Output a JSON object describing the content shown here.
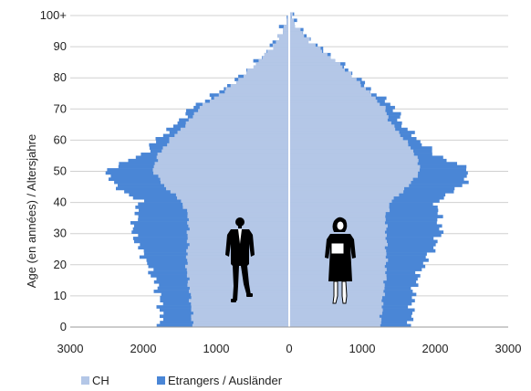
{
  "chart_data": {
    "type": "bar",
    "orientation": "horizontal-pyramid",
    "ylabel": "Age (en années) / Altersjahre",
    "xlim": [
      -3000,
      3000
    ],
    "ylim": [
      0,
      100
    ],
    "x_ticks": [
      -3000,
      -2000,
      -1000,
      0,
      1000,
      2000,
      3000
    ],
    "x_tick_labels": [
      "3000",
      "2000",
      "1000",
      "0",
      "1000",
      "2000",
      "3000"
    ],
    "y_ticks": [
      0,
      10,
      20,
      30,
      40,
      50,
      60,
      70,
      80,
      90,
      100
    ],
    "y_tick_labels": [
      "0",
      "10",
      "20",
      "30",
      "40",
      "50",
      "60",
      "70",
      "80",
      "90",
      "100+"
    ],
    "grid": "horizontal",
    "legend_position": "bottom-left",
    "colors": {
      "CH": "#b4c7e7",
      "Etrangers / Ausländer": "#4a86d6",
      "grid": "#d0d0d0",
      "center_line": "#ffffff"
    },
    "series": [
      {
        "name": "CH",
        "side_men": [
          [
            0,
            1320
          ],
          [
            5,
            1340
          ],
          [
            10,
            1360
          ],
          [
            15,
            1390
          ],
          [
            20,
            1410
          ],
          [
            25,
            1390
          ],
          [
            30,
            1390
          ],
          [
            35,
            1380
          ],
          [
            40,
            1480
          ],
          [
            45,
            1720
          ],
          [
            50,
            1870
          ],
          [
            55,
            1790
          ],
          [
            60,
            1620
          ],
          [
            65,
            1400
          ],
          [
            70,
            1230
          ],
          [
            75,
            900
          ],
          [
            80,
            640
          ],
          [
            85,
            420
          ],
          [
            90,
            220
          ],
          [
            95,
            90
          ],
          [
            100,
            20
          ]
        ],
        "side_women": [
          [
            0,
            1250
          ],
          [
            5,
            1270
          ],
          [
            10,
            1290
          ],
          [
            15,
            1320
          ],
          [
            20,
            1330
          ],
          [
            25,
            1330
          ],
          [
            30,
            1330
          ],
          [
            35,
            1320
          ],
          [
            40,
            1400
          ],
          [
            45,
            1640
          ],
          [
            50,
            1800
          ],
          [
            55,
            1730
          ],
          [
            60,
            1570
          ],
          [
            65,
            1390
          ],
          [
            70,
            1300
          ],
          [
            75,
            1090
          ],
          [
            80,
            880
          ],
          [
            85,
            640
          ],
          [
            90,
            360
          ],
          [
            95,
            140
          ],
          [
            100,
            30
          ]
        ]
      },
      {
        "name": "Etrangers / Ausländer",
        "side_men": [
          [
            0,
            1760
          ],
          [
            5,
            1760
          ],
          [
            10,
            1780
          ],
          [
            15,
            1850
          ],
          [
            20,
            1950
          ],
          [
            25,
            2050
          ],
          [
            30,
            2150
          ],
          [
            35,
            2100
          ],
          [
            40,
            2050
          ],
          [
            45,
            2400
          ],
          [
            50,
            2500
          ],
          [
            55,
            2000
          ],
          [
            60,
            1800
          ],
          [
            65,
            1530
          ],
          [
            70,
            1330
          ],
          [
            75,
            960
          ],
          [
            80,
            660
          ],
          [
            85,
            430
          ],
          [
            90,
            225
          ],
          [
            95,
            92
          ],
          [
            100,
            20
          ]
        ],
        "side_women": [
          [
            0,
            1670
          ],
          [
            5,
            1680
          ],
          [
            10,
            1700
          ],
          [
            15,
            1750
          ],
          [
            20,
            1850
          ],
          [
            25,
            1980
          ],
          [
            30,
            2080
          ],
          [
            35,
            2050
          ],
          [
            40,
            2020
          ],
          [
            45,
            2380
          ],
          [
            50,
            2470
          ],
          [
            55,
            2000
          ],
          [
            60,
            1750
          ],
          [
            65,
            1530
          ],
          [
            70,
            1450
          ],
          [
            75,
            1150
          ],
          [
            80,
            910
          ],
          [
            85,
            660
          ],
          [
            90,
            370
          ],
          [
            95,
            145
          ],
          [
            100,
            30
          ]
        ]
      }
    ]
  },
  "legend": {
    "items": [
      {
        "label": "CH",
        "color": "#b4c7e7"
      },
      {
        "label": "Etrangers / Ausländer",
        "color": "#4a86d6"
      }
    ]
  }
}
